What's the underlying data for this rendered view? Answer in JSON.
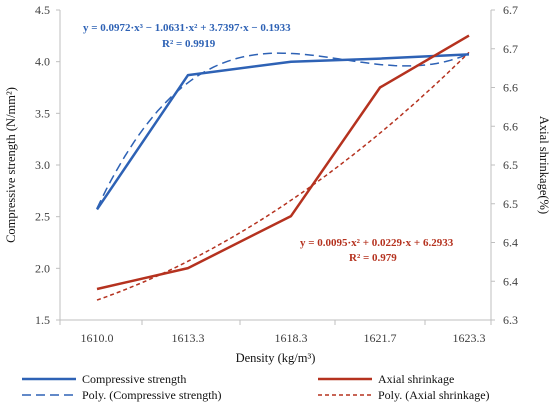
{
  "chart_data": {
    "type": "line",
    "categories": [
      "1610.0",
      "1613.3",
      "1618.3",
      "1621.7",
      "1623.3"
    ],
    "xlabel": "Density (kg/m³)",
    "ylabel_left": "Compressive strength (N/mm²)",
    "ylabel_right": "Axial shrinkage(%)",
    "ylim_left": [
      1.5,
      4.5
    ],
    "yticks_left": [
      "1.5",
      "2.0",
      "2.5",
      "3.0",
      "3.5",
      "4.0",
      "4.5"
    ],
    "ylim_right": [
      6.3,
      6.7
    ],
    "yticks_right": [
      "6.3",
      "6.4",
      "6.4",
      "6.5",
      "6.5",
      "6.6",
      "6.6",
      "6.7",
      "6.7"
    ],
    "grid": false,
    "legend_position": "bottom",
    "series": [
      {
        "name": "Compressive strength",
        "axis": "left",
        "style": "solid",
        "color": "#2e62b5",
        "values": [
          2.57,
          3.87,
          4.0,
          4.03,
          4.07
        ]
      },
      {
        "name": "Axial shrinkage",
        "axis": "right",
        "style": "solid",
        "color": "#b5321f",
        "values": [
          6.34,
          6.367,
          6.434,
          6.6,
          6.667
        ]
      }
    ],
    "trendlines": [
      {
        "name": "Poly. (Compressive strength)",
        "axis": "left",
        "style": "dashed",
        "color": "#2e62b5",
        "coefficients": [
          0.0972,
          -1.0631,
          3.7397,
          -0.1933
        ],
        "equation": "y = 0.0972·x³ − 1.0631·x² + 3.7397·x − 0.1933",
        "r2": "R² = 0.9919"
      },
      {
        "name": "Poly. (Axial shrinkage)",
        "axis": "right",
        "style": "dotted",
        "color": "#b5321f",
        "coefficients": [
          0.0095,
          0.0229,
          6.2933
        ],
        "equation": "y = 0.0095·x² + 0.0229·x + 6.2933",
        "r2": "R² = 0.979"
      }
    ]
  }
}
